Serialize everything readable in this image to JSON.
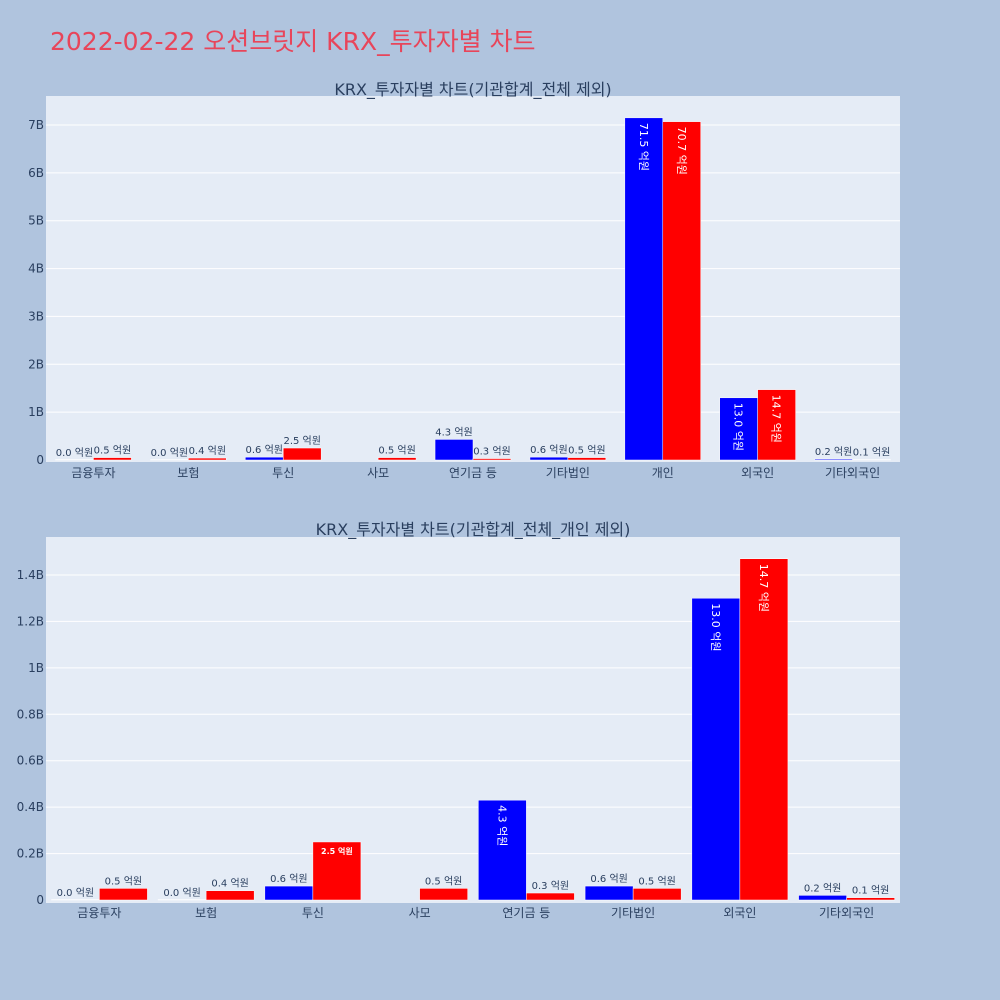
{
  "page": {
    "title": "2022-02-22 오션브릿지 KRX_투자자별 차트"
  },
  "colors": {
    "background": "#b0c4de",
    "plot_bg": "#e5ecf6",
    "series_a": "#0000ff",
    "series_b": "#ff0000",
    "title": "#e8455a"
  },
  "chart_data": [
    {
      "type": "bar",
      "title": "KRX_투자자별 차트(기관합계_전체 제외)",
      "categories": [
        "금융투자",
        "보험",
        "투신",
        "사모",
        "연기금 등",
        "기타법인",
        "개인",
        "외국인",
        "기타외국인"
      ],
      "yticks": [
        "0",
        "1B",
        "2B",
        "3B",
        "4B",
        "5B",
        "6B",
        "7B"
      ],
      "ylim": [
        0,
        7.7
      ],
      "grid": true,
      "series": [
        {
          "values": [
            0.0,
            0.0,
            0.06,
            null,
            0.43,
            0.06,
            7.15,
            1.3,
            0.02
          ],
          "labels": [
            "0.0 억원",
            "0.0 억원",
            "0.6 억원",
            "",
            "4.3 억원",
            "0.6 억원",
            "71.5 억원",
            "13.0 억원",
            "0.2 억원"
          ]
        },
        {
          "values": [
            0.05,
            0.04,
            0.25,
            0.05,
            0.03,
            0.05,
            7.07,
            1.47,
            0.01
          ],
          "labels": [
            "0.5 억원",
            "0.4 억원",
            "2.5 억원",
            "0.5 억원",
            "0.3 억원",
            "0.5 억원",
            "70.7 억원",
            "14.7 억원",
            "0.1 억원"
          ]
        }
      ]
    },
    {
      "type": "bar",
      "title": "KRX_투자자별 차트(기관합계_전체_개인 제외)",
      "categories": [
        "금융투자",
        "보험",
        "투신",
        "사모",
        "연기금 등",
        "기타법인",
        "외국인",
        "기타외국인"
      ],
      "yticks": [
        "0",
        "0.2B",
        "0.4B",
        "0.6B",
        "0.8B",
        "1B",
        "1.2B",
        "1.4B"
      ],
      "ylim": [
        0,
        1.57
      ],
      "grid": true,
      "series": [
        {
          "values": [
            0.0,
            0.0,
            0.06,
            null,
            0.43,
            0.06,
            1.3,
            0.02
          ],
          "labels": [
            "0.0 억원",
            "0.0 억원",
            "0.6 억원",
            "",
            "4.3 억원",
            "0.6 억원",
            "13.0 억원",
            "0.2 억원"
          ]
        },
        {
          "values": [
            0.05,
            0.04,
            0.25,
            0.05,
            0.03,
            0.05,
            1.47,
            0.01
          ],
          "labels": [
            "0.5 억원",
            "0.4 억원",
            "2.5 억원",
            "0.5 억원",
            "0.3 억원",
            "0.5 억원",
            "14.7 억원",
            "0.1 억원"
          ]
        }
      ]
    }
  ]
}
